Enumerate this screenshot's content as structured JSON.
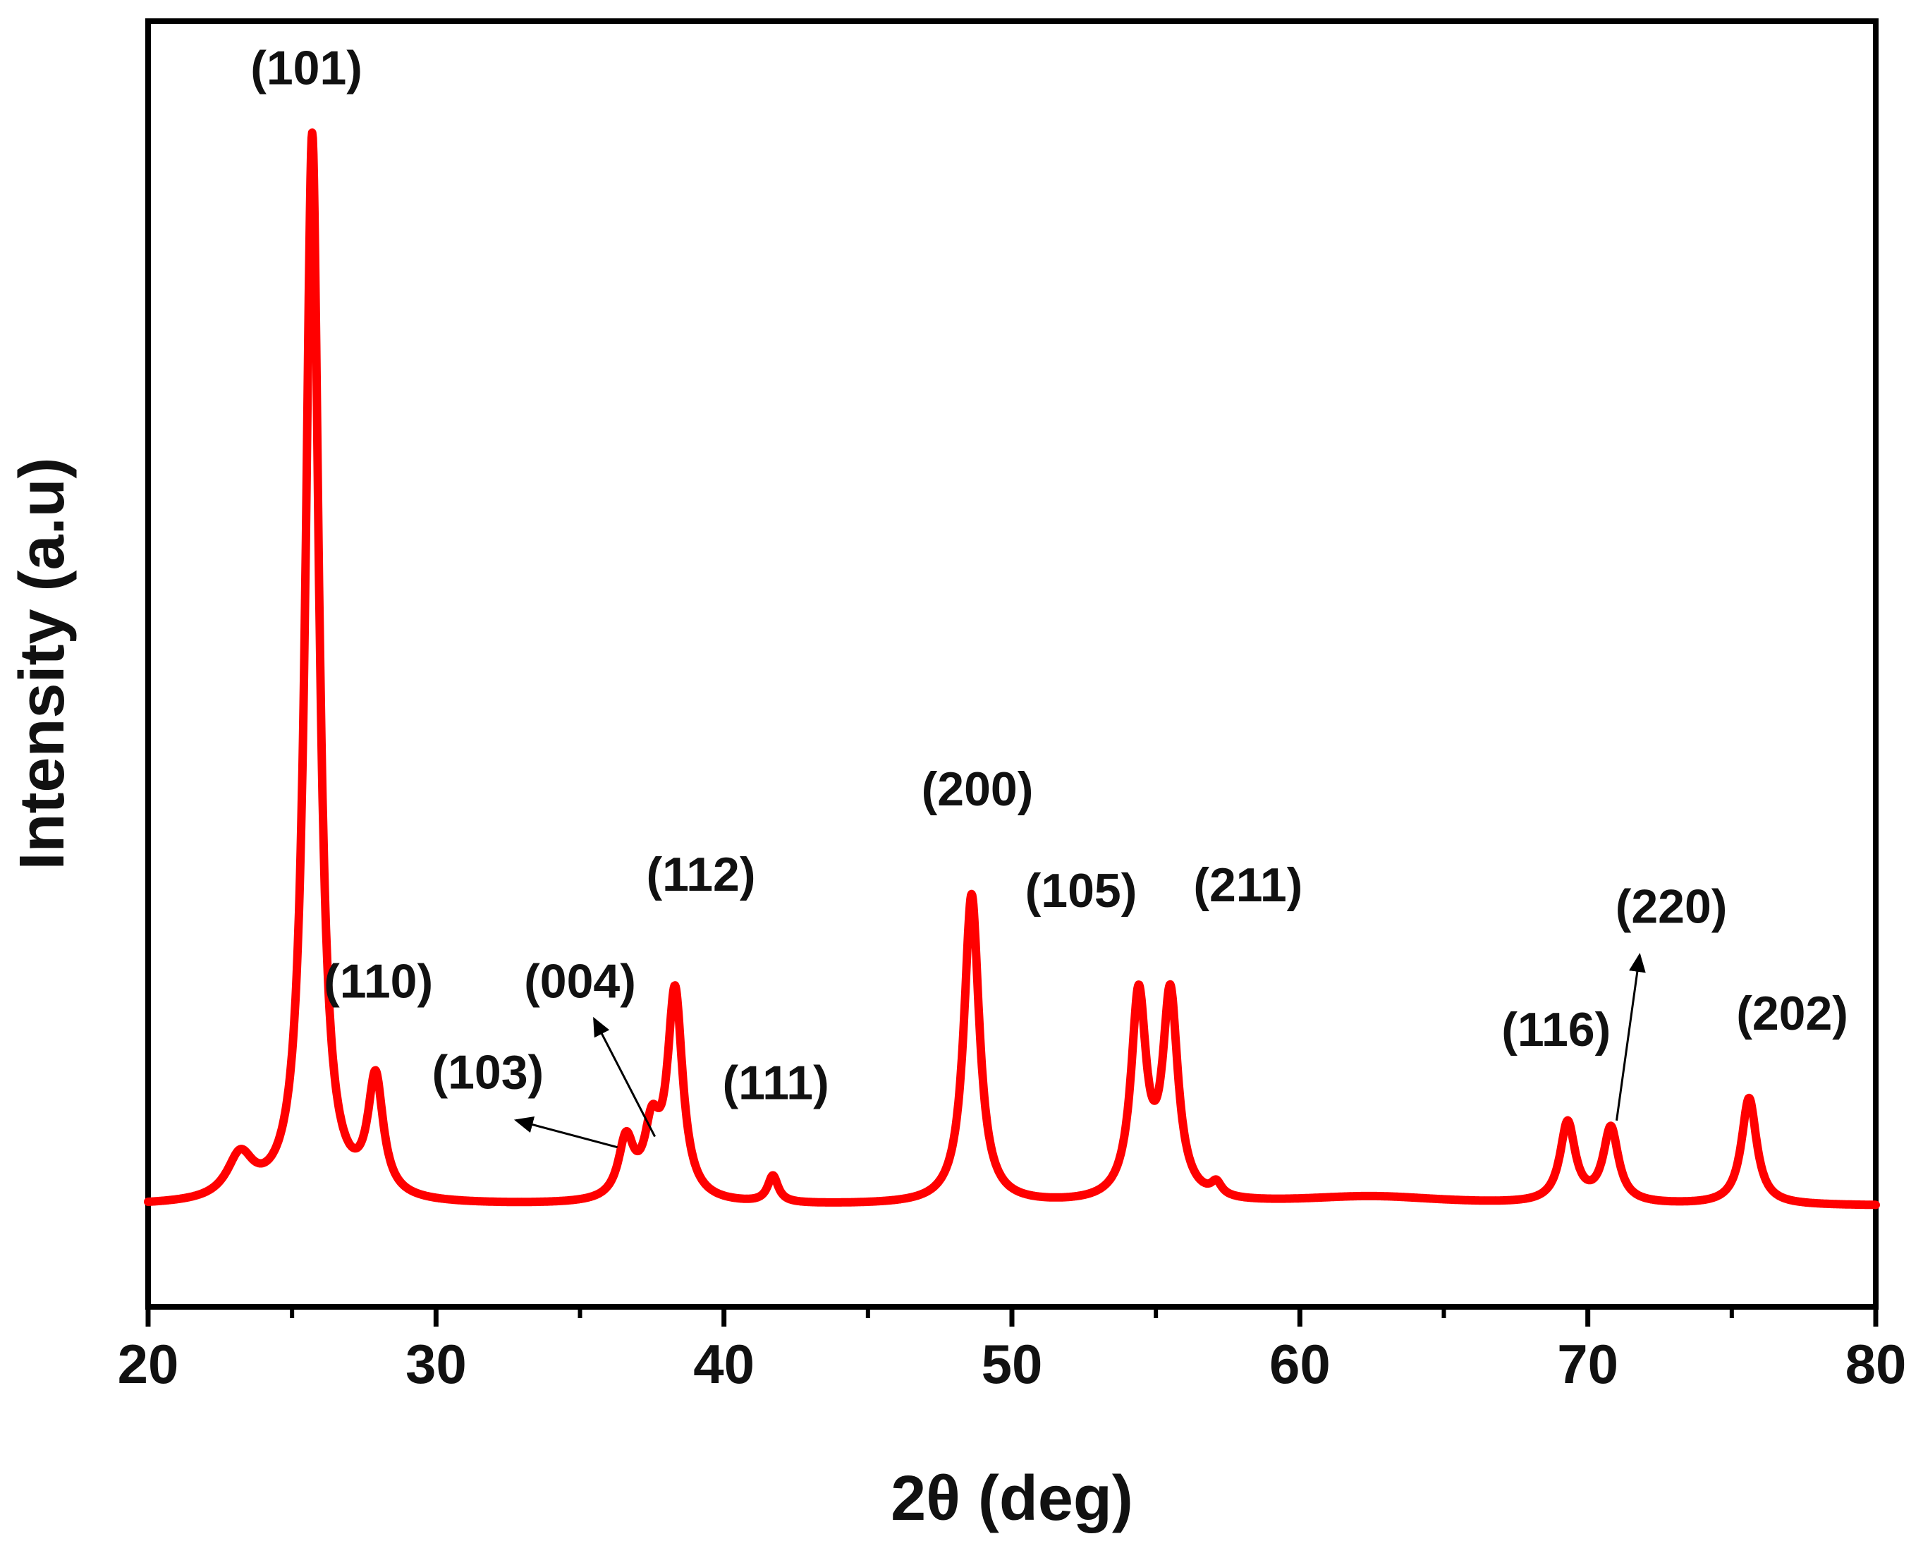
{
  "chart_data": {
    "type": "line",
    "title": "",
    "xlabel": "2θ (deg)",
    "ylabel": "Intensity (a.u)",
    "xlim": [
      20,
      80
    ],
    "ylim": [
      -0.09,
      1.0
    ],
    "x_ticks": [
      "20",
      "30",
      "40",
      "50",
      "60",
      "70",
      "80"
    ],
    "grid": false,
    "line_color": "#ff0000",
    "y_tick_labels_shown": false,
    "series": [
      {
        "name": "",
        "peaks": [
          {
            "x": 23.2,
            "y": 0.04
          },
          {
            "x": 25.7,
            "y": 1.0
          },
          {
            "x": 27.9,
            "y": 0.11
          },
          {
            "x": 36.6,
            "y": 0.055
          },
          {
            "x": 37.5,
            "y": 0.06
          },
          {
            "x": 38.3,
            "y": 0.195
          },
          {
            "x": 41.7,
            "y": 0.025
          },
          {
            "x": 48.6,
            "y": 0.29
          },
          {
            "x": 54.4,
            "y": 0.19
          },
          {
            "x": 55.5,
            "y": 0.19
          },
          {
            "x": 57.1,
            "y": 0.012
          },
          {
            "x": 62.5,
            "y": 0.008
          },
          {
            "x": 69.3,
            "y": 0.075
          },
          {
            "x": 70.8,
            "y": 0.07
          },
          {
            "x": 75.6,
            "y": 0.1
          }
        ],
        "baseline": 0.0
      }
    ],
    "annotations": [
      {
        "text": "(101)",
        "x": 25.5,
        "y": 1.05
      },
      {
        "text": "(110)",
        "x": 28.0,
        "y": 0.195
      },
      {
        "text": "(103)",
        "x": 31.8,
        "y": 0.11,
        "arrow_to": [
          36.3,
          0.055
        ]
      },
      {
        "text": "(004)",
        "x": 35.0,
        "y": 0.195,
        "arrow_to": [
          37.6,
          0.065
        ]
      },
      {
        "text": "(112)",
        "x": 39.2,
        "y": 0.295
      },
      {
        "text": "(111)",
        "x": 41.8,
        "y": 0.1
      },
      {
        "text": "(200)",
        "x": 48.8,
        "y": 0.375
      },
      {
        "text": "(105)",
        "x": 52.4,
        "y": 0.28
      },
      {
        "text": "(211)",
        "x": 58.2,
        "y": 0.285
      },
      {
        "text": "(116)",
        "x": 68.9,
        "y": 0.15
      },
      {
        "text": "(220)",
        "x": 72.9,
        "y": 0.265,
        "arrow_from": [
          71.0,
          0.08
        ],
        "arrow_to": [
          71.8,
          0.235
        ]
      },
      {
        "text": "(202)",
        "x": 77.1,
        "y": 0.165
      }
    ]
  }
}
